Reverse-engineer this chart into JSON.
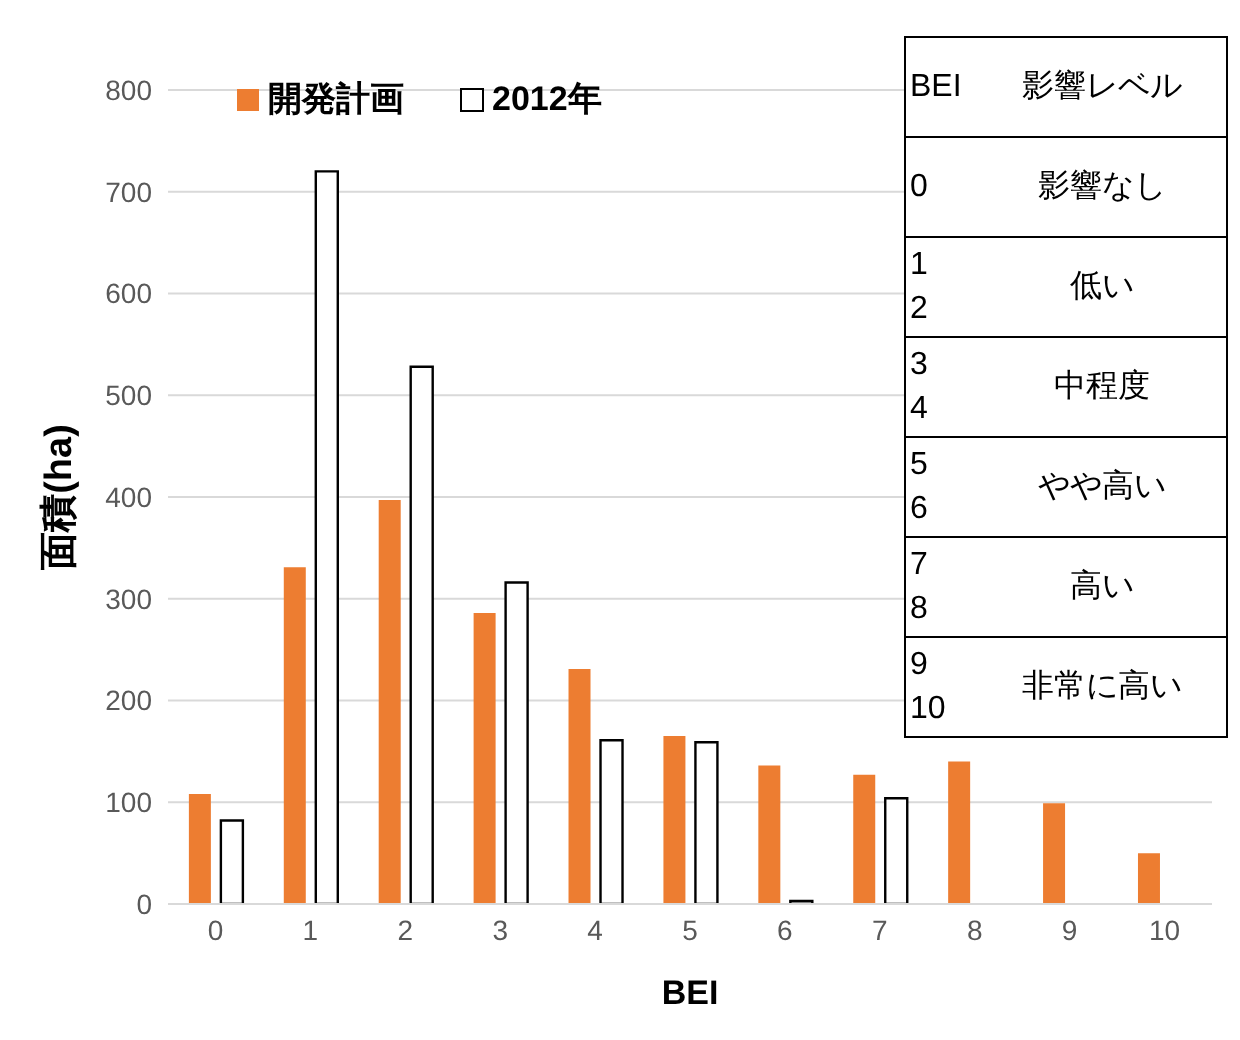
{
  "chart_data": {
    "type": "bar",
    "xlabel": "BEI",
    "ylabel": "面積(ha)",
    "categories": [
      "0",
      "1",
      "2",
      "3",
      "4",
      "5",
      "6",
      "7",
      "8",
      "9",
      "10"
    ],
    "series": [
      {
        "name": "開発計画",
        "color": "#ed7d31",
        "values": [
          108,
          331,
          397,
          286,
          231,
          165,
          136,
          127,
          140,
          99,
          50
        ]
      },
      {
        "name": "2012年",
        "color": "#ffffff",
        "values": [
          82,
          720,
          528,
          316,
          161,
          159,
          3,
          104,
          null,
          null,
          null
        ]
      }
    ],
    "ylim": [
      0,
      800
    ],
    "yticks": [
      0,
      100,
      200,
      300,
      400,
      500,
      600,
      700,
      800
    ],
    "grid": "y",
    "legend": "top left",
    "annotations": [
      "BEI",
      "影響レベル",
      "0",
      "影響なし",
      "1\n2",
      "低い",
      "3\n4",
      "中程度",
      "5\n6",
      "やや高い",
      "7\n8",
      "高い",
      "9\n10",
      "非常に高い"
    ]
  }
}
